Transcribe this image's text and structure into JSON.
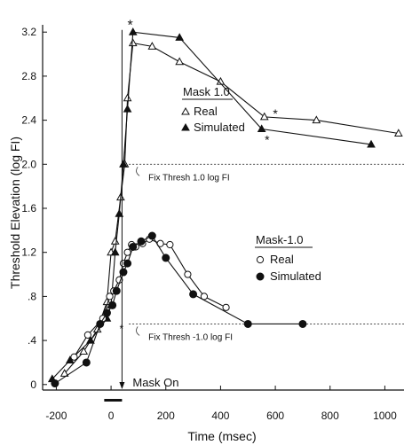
{
  "chart_data": {
    "type": "line",
    "xlabel": "Time (msec)",
    "ylabel": "Threshold Elevation (log FI)",
    "xlim": [
      -250,
      1070
    ],
    "ylim": [
      -0.05,
      3.25
    ],
    "x_ticks": [
      -200,
      0,
      200,
      400,
      600,
      800,
      1000
    ],
    "x_tick_labels": [
      "-200",
      "0",
      "200",
      "400",
      "600",
      "800",
      "1000"
    ],
    "y_ticks": [
      0,
      0.4,
      0.8,
      1.2,
      1.6,
      2.0,
      2.4,
      2.8,
      3.2
    ],
    "y_tick_labels": [
      "0",
      ".4",
      ".8",
      "1.2",
      "1.6",
      "2.0",
      "2.4",
      "2.8",
      "3.2"
    ],
    "grid": false,
    "legends": [
      {
        "title": "Mask 1.0",
        "entries": [
          {
            "marker": "open-triangle",
            "label": "Real"
          },
          {
            "marker": "filled-triangle",
            "label": "Simulated"
          }
        ]
      },
      {
        "title": "Mask-1.0",
        "entries": [
          {
            "marker": "open-circle",
            "label": "Real"
          },
          {
            "marker": "filled-circle",
            "label": "Simulated"
          }
        ]
      }
    ],
    "series": [
      {
        "marker": "open-triangle",
        "x": [
          -170,
          -100,
          -50,
          -15,
          0,
          15,
          35,
          50,
          60,
          80,
          150,
          250,
          400,
          560,
          750,
          1050
        ],
        "y": [
          0.1,
          0.3,
          0.5,
          0.75,
          1.2,
          1.3,
          1.7,
          2.0,
          2.6,
          3.1,
          3.07,
          2.93,
          2.75,
          2.43,
          2.4,
          2.28
        ]
      },
      {
        "marker": "filled-triangle",
        "x": [
          -215,
          -150,
          -75,
          -15,
          0,
          15,
          30,
          45,
          60,
          80,
          250,
          550,
          950
        ],
        "y": [
          0.05,
          0.22,
          0.4,
          0.6,
          0.72,
          1.2,
          1.55,
          2.0,
          2.5,
          3.2,
          3.15,
          2.32,
          2.18
        ]
      },
      {
        "marker": "open-circle",
        "x": [
          -135,
          -85,
          -30,
          -5,
          10,
          30,
          45,
          60,
          75,
          90,
          115,
          140,
          180,
          215,
          280,
          340,
          420
        ],
        "y": [
          0.25,
          0.45,
          0.6,
          0.8,
          0.85,
          0.95,
          1.1,
          1.2,
          1.27,
          1.25,
          1.28,
          1.32,
          1.28,
          1.27,
          1.0,
          0.8,
          0.7
        ]
      },
      {
        "marker": "filled-circle",
        "x": [
          -205,
          -90,
          -40,
          -15,
          5,
          20,
          45,
          60,
          80,
          110,
          150,
          200,
          300,
          500,
          700
        ],
        "y": [
          0.01,
          0.2,
          0.55,
          0.65,
          0.72,
          0.85,
          1.02,
          1.1,
          1.25,
          1.3,
          1.35,
          1.15,
          0.82,
          0.55,
          0.55
        ]
      }
    ],
    "reference_lines": [
      {
        "y": 2.0,
        "from_x": 65,
        "label": "Fix Thresh  1.0 log FI"
      },
      {
        "y": 0.55,
        "from_x": 65,
        "label": "Fix Thresh -1.0 log FI"
      }
    ],
    "annotations": {
      "mask_on_x": 40,
      "mask_on_label": "Mask On",
      "mask_bar_x": [
        -25,
        40
      ],
      "star_symbol": "*"
    }
  }
}
